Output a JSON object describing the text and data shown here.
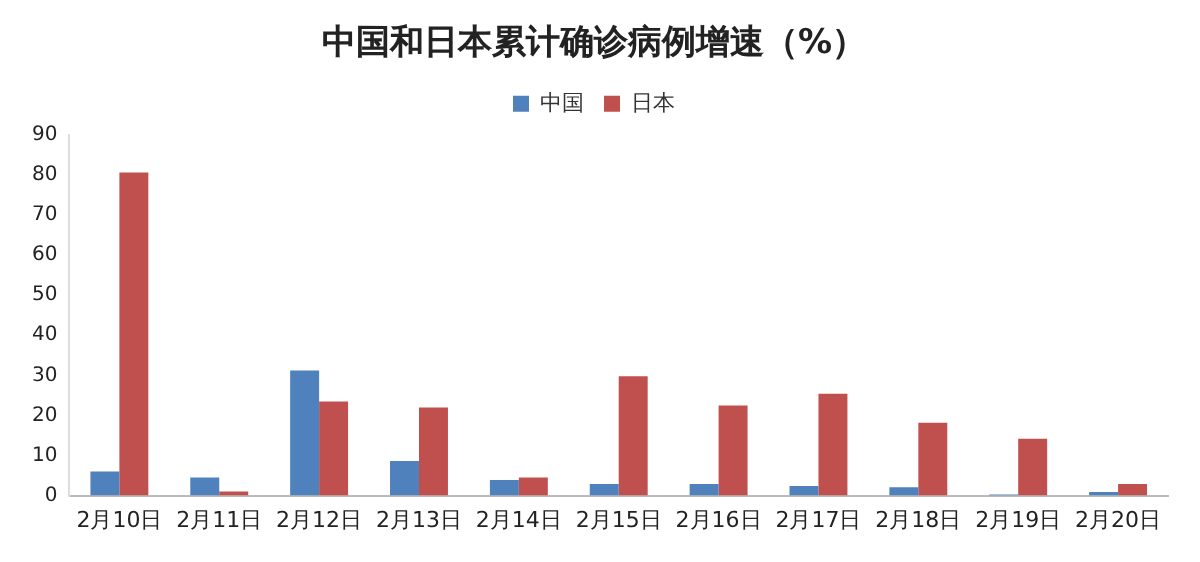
{
  "chart_data": {
    "type": "bar",
    "title": "中国和日本累计确诊病例增速（%）",
    "categories": [
      "2月10日",
      "2月11日",
      "2月12日",
      "2月13日",
      "2月14日",
      "2月15日",
      "2月16日",
      "2月17日",
      "2月18日",
      "2月19日",
      "2月20日"
    ],
    "series": [
      {
        "name": "中国",
        "color": "#4f81bd",
        "values": [
          6.0,
          4.5,
          31.2,
          8.6,
          3.9,
          2.9,
          2.9,
          2.4,
          2.1,
          0.3,
          0.9
        ]
      },
      {
        "name": "日本",
        "color": "#c0504d",
        "values": [
          80.6,
          1.0,
          23.5,
          22.0,
          4.5,
          29.8,
          22.5,
          25.4,
          18.2,
          14.2,
          2.9
        ]
      }
    ],
    "ylim": [
      0,
      90
    ],
    "yticks": [
      0,
      10,
      20,
      30,
      40,
      50,
      60,
      70,
      80,
      90
    ],
    "grid": false,
    "legend": "top"
  }
}
